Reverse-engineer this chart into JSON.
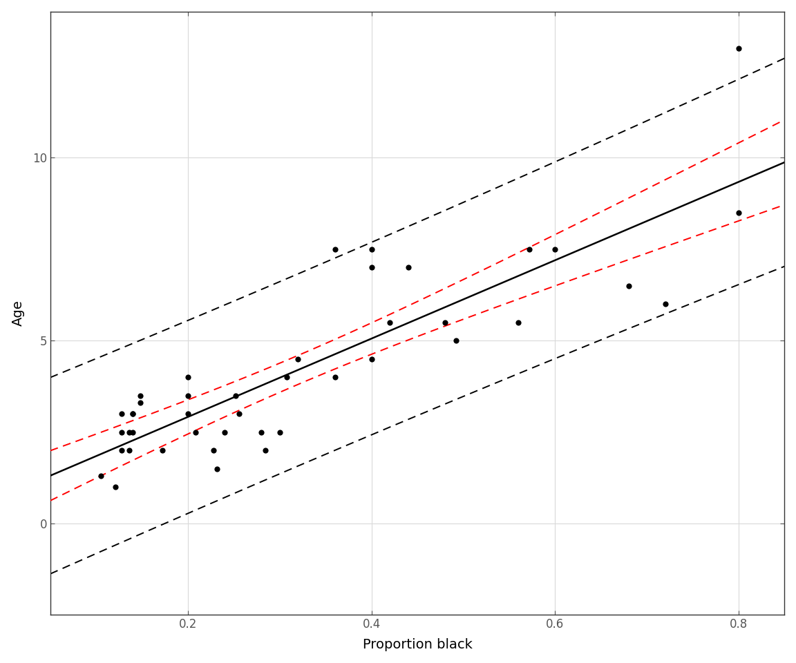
{
  "prop_black": [
    0.105,
    0.121,
    0.128,
    0.128,
    0.128,
    0.136,
    0.136,
    0.14,
    0.14,
    0.14,
    0.148,
    0.148,
    0.172,
    0.2,
    0.2,
    0.2,
    0.208,
    0.228,
    0.232,
    0.24,
    0.252,
    0.256,
    0.28,
    0.284,
    0.3,
    0.308,
    0.32,
    0.36,
    0.36,
    0.4,
    0.4,
    0.4,
    0.42,
    0.44,
    0.48,
    0.492,
    0.56,
    0.572,
    0.6,
    0.68,
    0.72,
    0.8,
    0.8
  ],
  "age": [
    1.3,
    1.0,
    2.0,
    2.5,
    3.0,
    2.0,
    2.5,
    3.0,
    3.0,
    2.5,
    3.5,
    3.3,
    2.0,
    3.0,
    4.0,
    3.5,
    2.5,
    2.0,
    1.5,
    2.5,
    3.5,
    3.0,
    2.5,
    2.0,
    2.5,
    4.0,
    4.5,
    4.0,
    7.5,
    4.5,
    7.5,
    7.0,
    5.5,
    7.0,
    5.5,
    5.0,
    5.5,
    7.5,
    7.5,
    6.5,
    6.0,
    8.5,
    13.0
  ],
  "xlabel": "Proportion black",
  "ylabel": "Age",
  "xlim": [
    0.05,
    0.85
  ],
  "ylim": [
    -2.5,
    14.0
  ],
  "xticks": [
    0.2,
    0.4,
    0.6,
    0.8
  ],
  "yticks": [
    0,
    5,
    10
  ],
  "bg_color": "#FFFFFF",
  "grid_color": "#D9D9D9",
  "point_color": "#000000",
  "line_color": "#000000",
  "ci_color": "#FF0000",
  "pi_color": "#000000",
  "point_size": 35,
  "line_width": 1.8,
  "ci_linewidth": 1.4,
  "pi_linewidth": 1.4
}
